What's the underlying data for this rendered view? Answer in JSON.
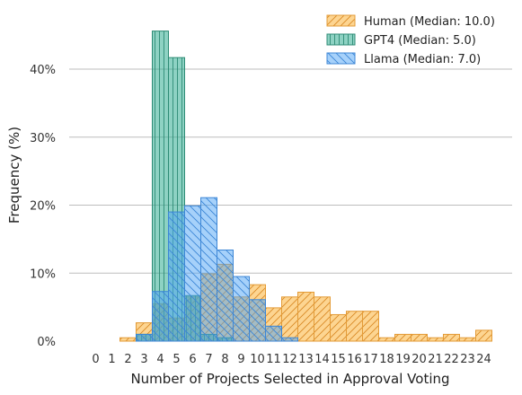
{
  "chart_data": {
    "type": "bar",
    "xlabel": "Number of Projects Selected in Approval Voting",
    "ylabel": "Frequency (%)",
    "categories": [
      "0",
      "1",
      "2",
      "3",
      "4",
      "5",
      "6",
      "7",
      "8",
      "9",
      "10",
      "11",
      "12",
      "13",
      "14",
      "15",
      "16",
      "17",
      "18",
      "19",
      "20",
      "21",
      "22",
      "23",
      "24"
    ],
    "ylim": [
      0,
      47
    ],
    "yticks": [
      0,
      10,
      20,
      30,
      40
    ],
    "ytick_labels": [
      "0%",
      "10%",
      "20%",
      "30%",
      "40%"
    ],
    "grid": true,
    "legend_position": "top-right",
    "series": [
      {
        "name": "Human (Median: 10.0)",
        "key": "human",
        "color": "#f6a623",
        "fill": "rgba(252,190,86,0.65)",
        "stroke": "#e39b37",
        "hatch": "diag-up",
        "values": [
          0,
          0,
          0.5,
          2.7,
          5.5,
          3.4,
          6.5,
          9.9,
          11.3,
          6.5,
          8.3,
          4.9,
          6.5,
          7.2,
          6.5,
          3.9,
          4.4,
          4.4,
          0.5,
          1.0,
          1.0,
          0.5,
          1.0,
          0.5,
          1.6
        ]
      },
      {
        "name": "GPT4 (Median: 5.0)",
        "key": "gpt4",
        "color": "#2aa889",
        "fill": "rgba(38,168,140,0.52)",
        "stroke": "#2c8b74",
        "hatch": "vert",
        "values": [
          0,
          0,
          0,
          1.0,
          45.6,
          41.7,
          6.7,
          1.0,
          0.5,
          0,
          0,
          0,
          0,
          0,
          0,
          0,
          0,
          0,
          0,
          0,
          0,
          0,
          0,
          0,
          0
        ]
      },
      {
        "name": "Llama (Median: 7.0)",
        "key": "llama",
        "color": "#4a9ef2",
        "fill": "rgba(77,163,245,0.5)",
        "stroke": "#3c86d6",
        "hatch": "diag-down",
        "values": [
          0,
          0,
          0,
          1.0,
          7.3,
          19.0,
          19.9,
          21.1,
          13.4,
          9.5,
          6.1,
          2.2,
          0.5,
          0,
          0,
          0,
          0,
          0,
          0,
          0,
          0,
          0,
          0,
          0,
          0
        ]
      }
    ]
  }
}
